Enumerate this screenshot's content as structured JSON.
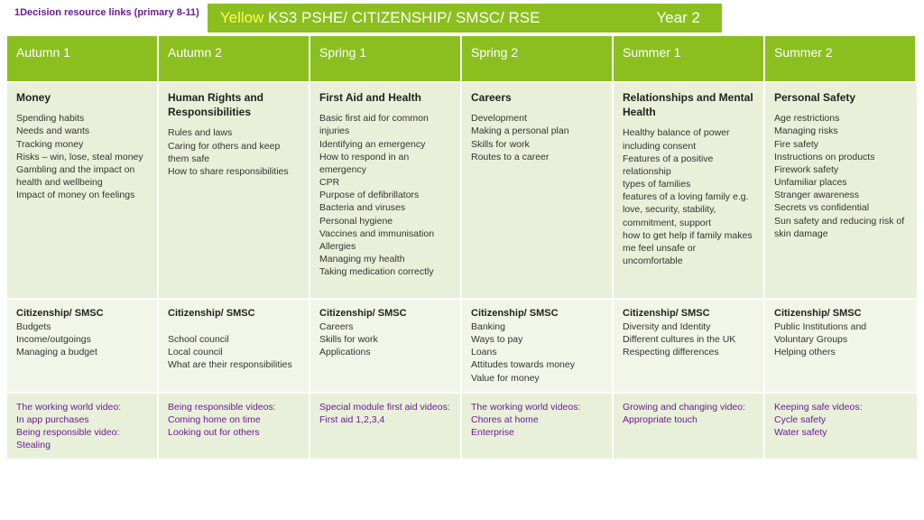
{
  "top_link": "1Decision resource links (primary 8-11)",
  "banner": {
    "yellow_word": "Yellow",
    "rest": " KS3 PSHE/ CITIZENSHIP/ SMSC/ RSE",
    "year": "Year 2",
    "bg": "#8bbf1f"
  },
  "columns": [
    {
      "header": "Autumn 1",
      "topic_title": "Money",
      "topic_items": "Spending habits\nNeeds and wants\nTracking money\nRisks – win, lose, steal money\nGambling and the impact on health and wellbeing\nImpact of money on feelings",
      "cit_title": "Citizenship/ SMSC",
      "cit_items": "Budgets\nIncome/outgoings\nManaging a budget",
      "video": "The working world video:\nIn app purchases\nBeing responsible video:\nStealing"
    },
    {
      "header": "Autumn 2",
      "topic_title": "Human Rights and Responsibilities",
      "topic_items": "Rules and laws\nCaring for others and keep them safe\nHow to share responsibilities",
      "cit_title": "Citizenship/ SMSC",
      "cit_items": "\nSchool council\nLocal council\nWhat are their responsibilities",
      "video": "Being responsible videos:\nComing home on time\nLooking out for others"
    },
    {
      "header": "Spring 1",
      "topic_title": "First Aid and Health",
      "topic_items": "Basic first aid for common injuries\nIdentifying an emergency\nHow to respond in an emergency\nCPR\nPurpose of defibrillators\nBacteria and viruses\nPersonal hygiene\nVaccines and immunisation\nAllergies\nManaging my health\nTaking medication correctly",
      "cit_title": "Citizenship/ SMSC",
      "cit_items": "Careers\nSkills for work\nApplications",
      "video": "Special module first aid videos:\nFirst aid 1,2,3,4"
    },
    {
      "header": "Spring 2",
      "topic_title": "Careers",
      "topic_items": "Development\nMaking a personal plan\nSkills for work\nRoutes to a career",
      "cit_title": "Citizenship/ SMSC",
      "cit_items": "Banking\nWays to pay\nLoans\nAttitudes towards money\nValue for money",
      "video": "The working world videos:\nChores at home\nEnterprise"
    },
    {
      "header": "Summer 1",
      "topic_title": "Relationships and Mental Health",
      "topic_items": "Healthy balance of power including consent\nFeatures of a positive relationship\ntypes of families\nfeatures of a loving family e.g. love, security, stability, commitment, support\nhow to get help if family makes me feel unsafe or uncomfortable",
      "cit_title": "Citizenship/ SMSC",
      "cit_items": "Diversity and Identity\nDifferent cultures in the UK\nRespecting differences",
      "video": "Growing and changing video:\nAppropriate touch"
    },
    {
      "header": "Summer 2",
      "topic_title": "Personal Safety",
      "topic_items": "Age restrictions\nManaging risks\nFire safety\nInstructions on products\nFirework safety\nUnfamiliar places\nStranger awareness\nSecrets vs confidential\nSun safety and reducing risk of skin damage",
      "cit_title": "Citizenship/ SMSC",
      "cit_items": "Public Institutions and Voluntary Groups\nHelping others",
      "video": "Keeping safe videos:\nCycle safety\nWater safety"
    }
  ]
}
